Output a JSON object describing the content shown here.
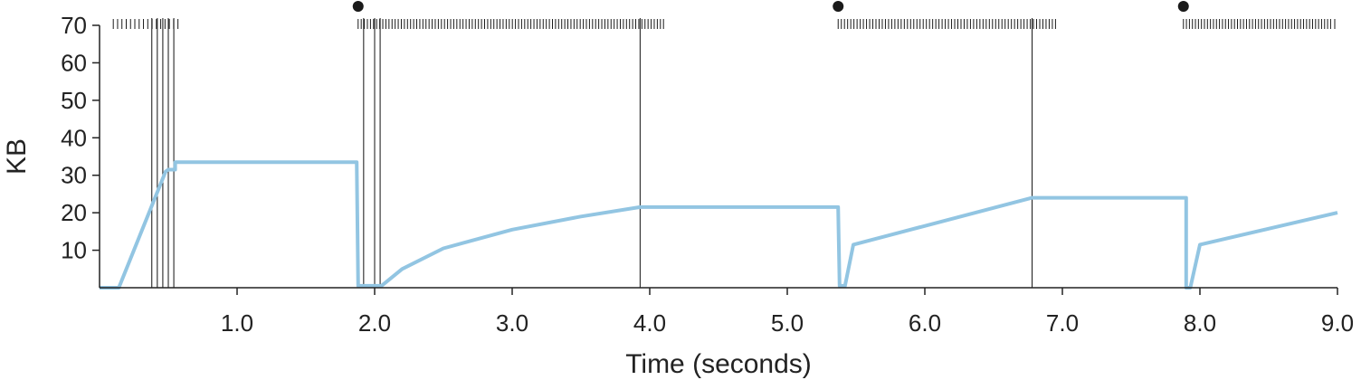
{
  "chart_data": {
    "type": "line",
    "title": "",
    "xlabel": "Time (seconds)",
    "ylabel": "KB",
    "xlim": [
      0.0,
      9.0
    ],
    "ylim": [
      0,
      70
    ],
    "x_ticks": [
      "1.0",
      "2.0",
      "3.0",
      "4.0",
      "5.0",
      "6.0",
      "7.0",
      "8.0",
      "9.0"
    ],
    "y_ticks": [
      "10",
      "20",
      "30",
      "40",
      "50",
      "60",
      "70"
    ],
    "grid": false,
    "legend": "none",
    "colors": {
      "series": "#92c5e2",
      "markers": "#1a1a1a"
    },
    "series": [
      {
        "x": [
          0.0,
          0.14,
          0.48,
          0.5,
          0.55,
          0.55,
          1.87,
          1.88,
          2.05,
          2.2,
          2.5,
          3.0,
          3.5,
          3.93,
          5.37,
          5.38,
          5.42,
          5.48,
          6.78,
          7.9,
          7.9,
          7.93,
          8.0,
          9.0
        ],
        "y": [
          0,
          0,
          31,
          31.5,
          31.5,
          33.5,
          33.5,
          0.5,
          0.5,
          5,
          10.5,
          15.5,
          19,
          21.5,
          21.5,
          0.5,
          0.5,
          11.5,
          24,
          24,
          0,
          0,
          11.5,
          20
        ]
      }
    ],
    "event_lines": [
      0.38,
      0.42,
      0.46,
      0.5,
      0.54,
      1.92,
      2.0,
      2.04,
      3.93,
      6.78
    ],
    "connection_markers": [
      1.88,
      5.37,
      7.88
    ],
    "packet_bursts": [
      {
        "start": 0.1,
        "end": 0.57,
        "count": 16
      },
      {
        "start": 1.88,
        "end": 4.1,
        "count": 100
      },
      {
        "start": 5.37,
        "end": 6.95,
        "count": 70
      },
      {
        "start": 7.88,
        "end": 8.95,
        "count": 50
      }
    ],
    "packet_singles": [
      9.0
    ]
  }
}
